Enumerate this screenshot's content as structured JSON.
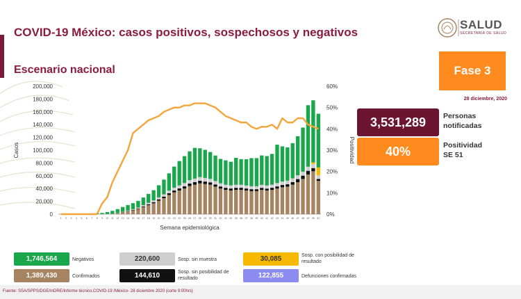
{
  "header": {
    "title": "COVID-19 México: casos positivos, sospechosos y negativos",
    "subtitle": "Escenario nacional",
    "logo_text": "SALUD",
    "logo_sub": "SECRETARÍA DE SALUD"
  },
  "status": {
    "phase": "Fase 3",
    "date": "28 diciembre, 2020"
  },
  "kpis": [
    {
      "value": "3,531,289",
      "label_line1": "Personas",
      "label_line2": "notificadas",
      "color": "#6b1530"
    },
    {
      "value": "40%",
      "label_line1": "Positividad",
      "label_line2": "SE 51",
      "color": "#ff8a1e"
    }
  ],
  "legend": [
    {
      "value": "1,746,564",
      "label": "Negativos",
      "color": "#1aa64a"
    },
    {
      "value": "220,600",
      "label": "Sosp. sin muestra",
      "color": "#cfcfcf"
    },
    {
      "value": "30,085",
      "label": "Sosp. con posibilidad de resultado",
      "color": "#f7b900"
    },
    {
      "value": "1,389,430",
      "label": "Confirmados",
      "color": "#a68461"
    },
    {
      "value": "144,610",
      "label": "Sosp. sin posibilidad de resultado",
      "color": "#111111"
    },
    {
      "value": "122,855",
      "label": "Defunciones confirmadas",
      "color": "#8c8cf0"
    }
  ],
  "footer": "Fuente: SSA/SPPS/DGE/InDRE/Informe técnico.COVID-19 /México- 28 diciembre 2020 (corte 9:00hrs)",
  "chart_data": {
    "type": "bar",
    "stacked": true,
    "xlabel": "Semana epidemiológica",
    "ylabel": "Casos",
    "y2label": "Positividad",
    "ylim": [
      0,
      200000
    ],
    "y2lim": [
      0,
      60
    ],
    "yticks": [
      "0",
      "20,000",
      "40,000",
      "60,000",
      "80,000",
      "100,000",
      "120,000",
      "140,000",
      "160,000",
      "180,000",
      "200,000"
    ],
    "y2ticks": [
      "0%",
      "10%",
      "20%",
      "30%",
      "40%",
      "50%",
      "60%"
    ],
    "categories": [
      "1",
      "2",
      "3",
      "4",
      "5",
      "6",
      "7",
      "8",
      "9",
      "10",
      "11",
      "12",
      "13",
      "14",
      "15",
      "16",
      "17",
      "18",
      "19",
      "20",
      "21",
      "22",
      "23",
      "24",
      "25",
      "26",
      "27",
      "28",
      "29",
      "30",
      "31",
      "32",
      "33",
      "34",
      "35",
      "36",
      "37",
      "38",
      "39",
      "40",
      "41",
      "42",
      "43",
      "44",
      "45",
      "46",
      "47",
      "48",
      "49",
      "50",
      "51"
    ],
    "series": [
      {
        "name": "Confirmados",
        "color": "#a68461",
        "values": [
          0,
          0,
          0,
          0,
          0,
          0,
          0,
          0,
          50,
          150,
          500,
          1500,
          3000,
          4500,
          6000,
          8000,
          11000,
          14000,
          17000,
          21000,
          25000,
          30000,
          34000,
          37000,
          40000,
          44000,
          46000,
          48000,
          47000,
          46000,
          43000,
          40000,
          38000,
          37000,
          38000,
          38000,
          37000,
          36000,
          36000,
          38000,
          37000,
          38000,
          40000,
          42000,
          43000,
          46000,
          50000,
          55000,
          62000,
          67000,
          52000
        ]
      },
      {
        "name": "Sosp. sin posibilidad de resultado",
        "color": "#111111",
        "values": [
          0,
          0,
          0,
          0,
          0,
          0,
          0,
          0,
          0,
          50,
          100,
          200,
          300,
          500,
          700,
          900,
          1200,
          1500,
          1800,
          2200,
          2500,
          2800,
          3000,
          3200,
          3500,
          3800,
          4000,
          4200,
          4000,
          3800,
          3500,
          3300,
          3200,
          3100,
          3200,
          3200,
          3100,
          3000,
          3000,
          3100,
          3000,
          3200,
          3400,
          3600,
          3800,
          4200,
          4800,
          5200,
          5800,
          5000,
          3000
        ]
      },
      {
        "name": "Sosp. sin muestra",
        "color": "#cfcfcf",
        "values": [
          0,
          0,
          0,
          0,
          0,
          0,
          0,
          0,
          0,
          50,
          100,
          200,
          400,
          700,
          1000,
          1400,
          1800,
          2200,
          2600,
          3000,
          3500,
          4000,
          4400,
          4800,
          5200,
          5400,
          5600,
          5800,
          5600,
          5400,
          5200,
          5000,
          4900,
          4800,
          4800,
          4800,
          4700,
          4600,
          4600,
          4700,
          4800,
          5000,
          5200,
          5400,
          5600,
          5800,
          6000,
          6200,
          6500,
          6500,
          6000
        ]
      },
      {
        "name": "Sosp. con posibilidad de resultado",
        "color": "#f7b900",
        "values": [
          0,
          0,
          0,
          0,
          0,
          0,
          0,
          0,
          0,
          0,
          0,
          0,
          0,
          0,
          0,
          0,
          0,
          0,
          0,
          0,
          0,
          0,
          0,
          0,
          0,
          0,
          0,
          0,
          0,
          0,
          0,
          0,
          0,
          0,
          0,
          0,
          0,
          0,
          0,
          0,
          0,
          0,
          0,
          0,
          0,
          0,
          0,
          0,
          0,
          2500,
          12000
        ]
      },
      {
        "name": "Negativos",
        "color": "#1aa64a",
        "values": [
          200,
          300,
          500,
          600,
          800,
          1000,
          1200,
          1500,
          1800,
          3000,
          4500,
          6000,
          7500,
          8500,
          9500,
          10500,
          12000,
          14000,
          16000,
          19000,
          23000,
          27000,
          33000,
          38000,
          42000,
          45000,
          48000,
          45000,
          44000,
          42000,
          40000,
          38000,
          38000,
          37000,
          42000,
          40000,
          41000,
          44000,
          44000,
          46000,
          46000,
          48000,
          60000,
          55000,
          52000,
          55000,
          61000,
          69000,
          96000,
          97000,
          84000
        ]
      }
    ],
    "positivity_line": {
      "name": "Positividad",
      "color": "#f5a43a",
      "values": [
        0,
        0,
        0,
        0,
        0,
        0,
        0,
        0,
        5,
        8,
        15,
        20,
        25,
        30,
        38,
        40,
        42,
        44,
        45,
        46,
        48,
        49,
        50,
        50,
        51,
        51,
        52,
        52,
        52,
        51,
        50,
        48,
        46,
        45,
        44,
        43,
        43,
        41,
        40,
        41,
        41,
        42,
        40,
        45,
        43,
        43,
        45,
        45,
        42,
        41,
        40
      ]
    }
  }
}
